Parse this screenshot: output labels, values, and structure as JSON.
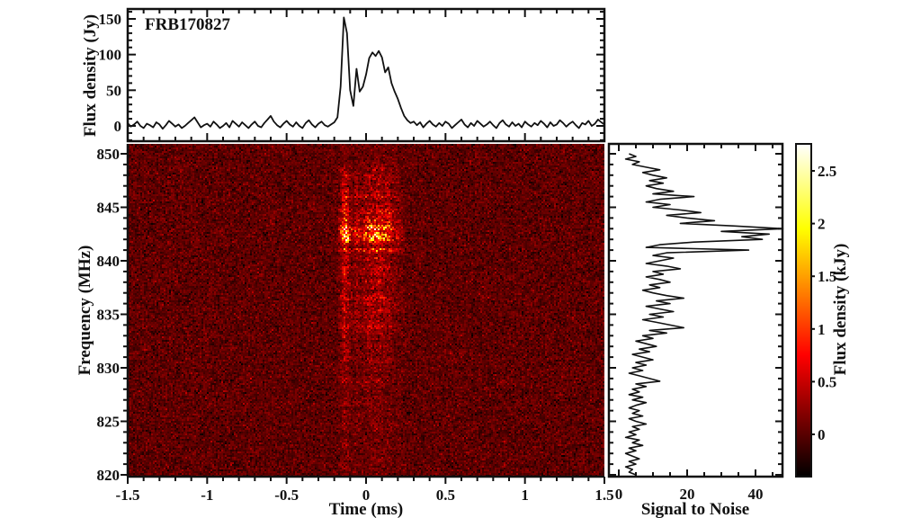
{
  "figure": {
    "background": "#ffffff",
    "axis_color": "#111111",
    "source_label": "FRB170827"
  },
  "chart_data": [
    {
      "id": "pulse_profile",
      "type": "line",
      "title": "FRB170827",
      "xlabel": "",
      "ylabel": "Flux density (Jy)",
      "xlim": [
        -1.5,
        1.5
      ],
      "ylim": [
        -21,
        164
      ],
      "yticks": [
        0,
        50,
        100,
        150
      ],
      "ytick_labels": [
        "0",
        "50",
        "100",
        "150"
      ],
      "ytick_minor_step": 10,
      "x_start": -1.5,
      "x_step": 0.02,
      "line_color": "#111111",
      "values": [
        4,
        -1,
        2,
        6,
        0,
        -3,
        3,
        1,
        -2,
        5,
        2,
        -4,
        1,
        7,
        3,
        -1,
        2,
        -3,
        0,
        4,
        8,
        12,
        5,
        -2,
        1,
        3,
        -1,
        6,
        2,
        -3,
        0,
        4,
        -2,
        7,
        3,
        -1,
        5,
        1,
        -3,
        2,
        6,
        0,
        -2,
        4,
        9,
        14,
        6,
        1,
        -2,
        3,
        7,
        2,
        -1,
        5,
        0,
        -3,
        4,
        8,
        2,
        -2,
        3,
        6,
        1,
        -1,
        2,
        5,
        12,
        55,
        152,
        130,
        50,
        28,
        80,
        48,
        55,
        72,
        95,
        103,
        98,
        105,
        96,
        75,
        82,
        60,
        48,
        38,
        25,
        14,
        8,
        4,
        6,
        1,
        5,
        -2,
        3,
        7,
        2,
        -1,
        4,
        0,
        6,
        3,
        -3,
        1,
        5,
        9,
        2,
        -2,
        4,
        0,
        7,
        3,
        -1,
        2,
        6,
        1,
        -3,
        4,
        8,
        2,
        -1,
        5,
        0,
        3,
        -2,
        6,
        2,
        -1,
        4,
        1,
        7,
        3,
        -2,
        5,
        0,
        2,
        8,
        4,
        -1,
        3,
        6,
        1,
        -3,
        4,
        2,
        7,
        0,
        3,
        9,
        5,
        2
      ]
    },
    {
      "id": "dynamic_spectrum",
      "type": "heatmap",
      "xlabel": "Time (ms)",
      "ylabel": "Frequency (MHz)",
      "xlim": [
        -1.5,
        1.5
      ],
      "ylim": [
        819.9,
        850.9
      ],
      "xticks": [
        -1.5,
        -1,
        -0.5,
        0,
        0.5,
        1,
        1.5
      ],
      "xtick_labels": [
        "-1.5",
        "-1",
        "-0.5",
        "0",
        "0.5",
        "1",
        "1.5"
      ],
      "xtick_minor_step": 0.1,
      "yticks": [
        820,
        825,
        830,
        835,
        840,
        845,
        850
      ],
      "ytick_labels": [
        "820",
        "825",
        "830",
        "835",
        "840",
        "845",
        "850"
      ],
      "ytick_minor_step": 1,
      "colormap": "hot",
      "value_range_kjy": [
        -0.4,
        2.75
      ],
      "noise_mean_kjy": 0.02,
      "noise_sigma_kjy": 0.13,
      "burst_peak_scale_kjy": 2.9,
      "burst_description": "Burst appears as a brightened vertical column between about -0.2 and +0.3 ms; brightest yellow-white pixels near 841-843.5 MHz; brightness follows the pulse profile in time and the signal-to-noise spectrum in frequency; background is dark-red random noise."
    },
    {
      "id": "snr_spectrum",
      "type": "line",
      "xlabel": "Signal to Noise",
      "ylabel": "",
      "xlim": [
        -3,
        48
      ],
      "xticks": [
        0,
        20,
        40
      ],
      "xtick_labels": [
        "0",
        "20",
        "40"
      ],
      "xtick_minor_step": 5,
      "freq_start": 850,
      "freq_step": -0.25,
      "line_color": "#111111",
      "values": [
        3,
        5,
        2,
        6,
        4,
        8,
        12,
        7,
        10,
        14,
        9,
        13,
        8,
        11,
        16,
        10,
        22,
        12,
        8,
        15,
        10,
        18,
        24,
        14,
        20,
        28,
        18,
        34,
        48,
        30,
        44,
        36,
        42,
        22,
        12,
        8,
        38,
        14,
        10,
        16,
        12,
        8,
        14,
        18,
        10,
        13,
        8,
        12,
        15,
        9,
        12,
        7,
        10,
        14,
        19,
        11,
        15,
        8,
        12,
        16,
        9,
        13,
        7,
        11,
        15,
        19,
        9,
        14,
        7,
        10,
        5,
        8,
        11,
        6,
        9,
        4,
        7,
        10,
        5,
        8,
        4,
        7,
        3,
        6,
        9,
        12,
        5,
        8,
        4,
        6,
        3,
        7,
        4,
        8,
        5,
        3,
        6,
        4,
        7,
        3,
        5,
        8,
        4,
        6,
        3,
        5,
        2,
        6,
        4,
        7,
        3,
        5,
        2,
        4,
        6,
        3,
        5,
        2,
        4,
        3,
        5
      ]
    },
    {
      "id": "colorbar",
      "type": "colorbar",
      "label": "Flux density (kJy)",
      "ticks": [
        0,
        0.5,
        1,
        1.5,
        2,
        2.5
      ],
      "tick_labels": [
        "0",
        "0.5",
        "1",
        "1.5",
        "2",
        "2.5"
      ],
      "value_range": [
        -0.4,
        2.75
      ],
      "colormap": "hot",
      "hot_breakpoints": [
        0.365,
        0.745
      ]
    }
  ]
}
